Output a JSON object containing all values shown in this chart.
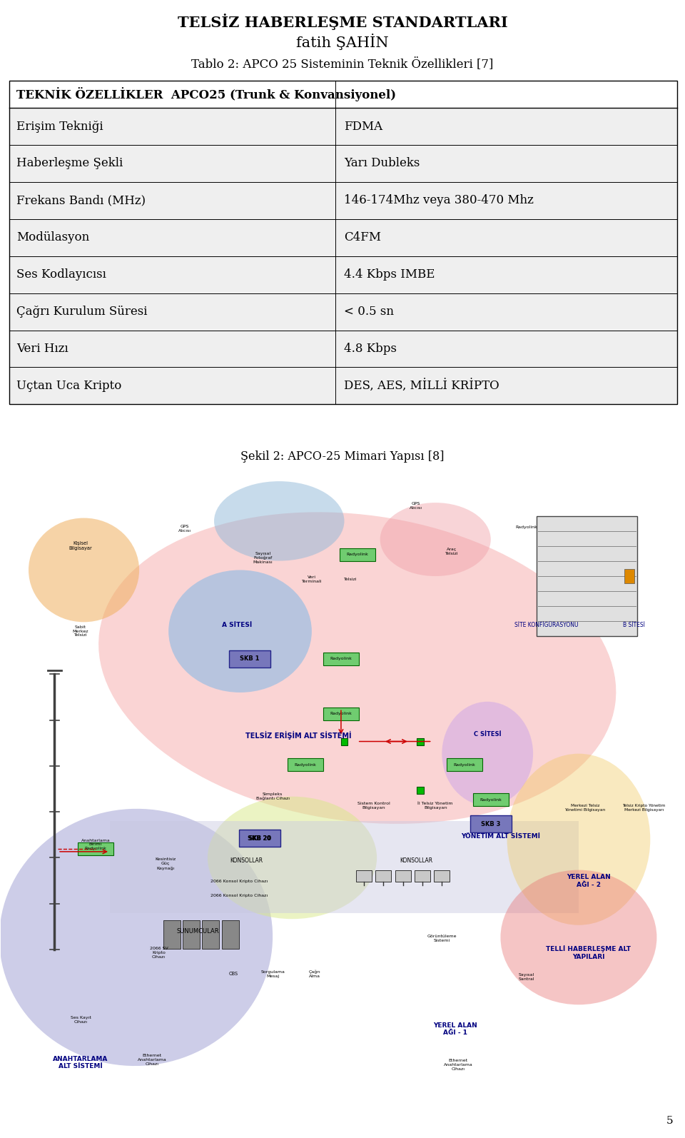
{
  "title_line1": "TELSİZ HABERLEŞME STANDARTLARI",
  "title_line2": "fatih ŞAHİN",
  "subtitle": "Tablo 2: APCO 25 Sisteminin Teknik Özellikleri [7]",
  "header": "TEKNİK ÖZELLİKLER  APCO25 (Trunk & Konvansiyonel)",
  "rows": [
    [
      "Erişim Tekniği",
      "FDMA"
    ],
    [
      "Haberleşme Şekli",
      "Yarı Dubleks"
    ],
    [
      "Frekans Bandı (MHz)",
      "146-174Mhz veya 380-470 Mhz"
    ],
    [
      "Modülasyon",
      "C4FM"
    ],
    [
      "Ses Kodlayıcısı",
      "4.4 Kbps IMBE"
    ],
    [
      "Çağrı Kurulum Süresi",
      "< 0.5 sn"
    ],
    [
      "Veri Hızı",
      "4.8 Kbps"
    ],
    [
      "Uçtan Uca Kripto",
      "DES, AES, MİLLİ KRİPTO"
    ]
  ],
  "figure_caption": "Şekil 2: APCO-25 Mimari Yapısı [8]",
  "page_number": "5",
  "bg_color": "#ffffff",
  "table_border_color": "#000000",
  "header_bg": "#ffffff",
  "row_alt_bg": "#efefef",
  "row_bg": "#ffffff",
  "title_fontsize": 15,
  "subtitle_fontsize": 12,
  "table_fontsize": 12,
  "header_fontsize": 12
}
